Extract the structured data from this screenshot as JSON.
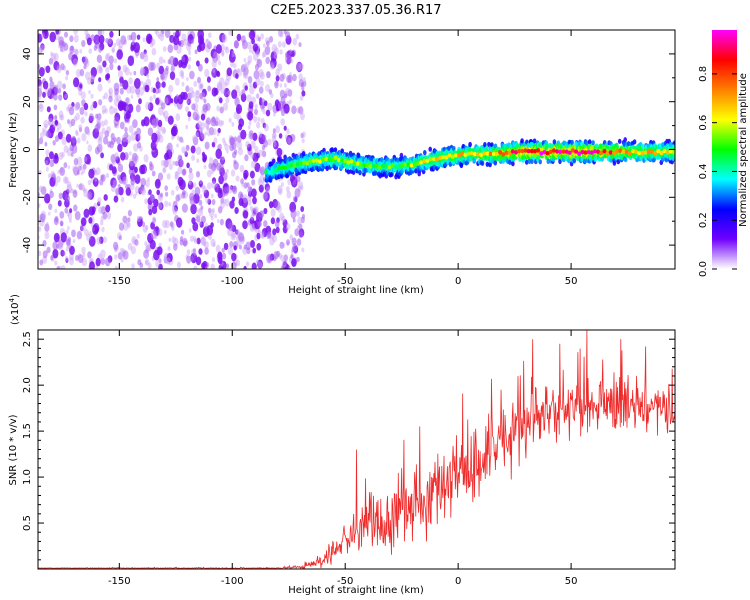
{
  "title": "C2E5.2023.337.05.36.R17",
  "chart_data": [
    {
      "type": "heatmap",
      "name": "spectrogram",
      "xlabel": "Height of straight line (km)",
      "ylabel": "Frequency (Hz)",
      "xlim": [
        -186,
        96
      ],
      "ylim": [
        -50,
        50
      ],
      "xticks": [
        -150,
        -100,
        -50,
        0,
        50
      ],
      "yticks": [
        -40,
        -20,
        0,
        20,
        40
      ],
      "noise_region_x": [
        -186,
        -72
      ],
      "signal_start_x": -85,
      "ridge": {
        "x": [
          -85,
          -75,
          -65,
          -55,
          -45,
          -35,
          -25,
          -15,
          -5,
          5,
          15,
          25,
          35,
          45,
          55,
          65,
          75,
          85,
          96
        ],
        "freq_hz": [
          -10,
          -7,
          -5,
          -4,
          -6,
          -7,
          -7,
          -5,
          -3,
          -2,
          -2,
          -1,
          -1,
          -1,
          -1,
          -1,
          -1,
          -1,
          -1
        ],
        "peak_amplitude": [
          0.45,
          0.55,
          0.6,
          0.62,
          0.6,
          0.55,
          0.55,
          0.65,
          0.7,
          0.72,
          0.75,
          0.95,
          0.98,
          0.98,
          0.98,
          0.9,
          0.75,
          0.72,
          0.7
        ]
      },
      "colorbar": {
        "label": "Normalized spectral amplitude",
        "range": [
          0,
          0.98
        ],
        "ticks": [
          "0.0",
          "0.2",
          "0.4",
          "0.6",
          "0.8"
        ],
        "tick_values": [
          0,
          0.2,
          0.4,
          0.6,
          0.8
        ],
        "stops": [
          "#ffffff",
          "#7000ff",
          "#0000ff",
          "#00ffff",
          "#00ff00",
          "#ffff00",
          "#ff8000",
          "#ff0000",
          "#ff00ff"
        ]
      }
    },
    {
      "type": "line",
      "name": "snr",
      "xlabel": "Height of straight line (km)",
      "ylabel": "SNR (10 * v/v)",
      "scale_label": "(x10",
      "scale_exp": "4",
      "scale_close": ")",
      "xlim": [
        -186,
        96
      ],
      "ylim": [
        0,
        2.6
      ],
      "xticks": [
        -150,
        -100,
        -50,
        0,
        50
      ],
      "yticks": [
        "0.5",
        "1.0",
        "1.5",
        "2.0",
        "2.5"
      ],
      "ytick_values": [
        0.5,
        1.0,
        1.5,
        2.0,
        2.5
      ],
      "color": "#ee2a2a",
      "envelope": {
        "x": [
          -186,
          -80,
          -70,
          -60,
          -55,
          -50,
          -45,
          -40,
          -30,
          -20,
          -10,
          0,
          10,
          20,
          30,
          40,
          50,
          60,
          70,
          80,
          96
        ],
        "mean": [
          0.01,
          0.01,
          0.02,
          0.1,
          0.2,
          0.3,
          0.38,
          0.45,
          0.55,
          0.7,
          0.85,
          1.05,
          1.2,
          1.4,
          1.6,
          1.7,
          1.75,
          1.78,
          1.78,
          1.75,
          1.72
        ],
        "spread": [
          0.003,
          0.005,
          0.02,
          0.08,
          0.14,
          0.2,
          0.25,
          0.28,
          0.33,
          0.38,
          0.42,
          0.45,
          0.45,
          0.42,
          0.38,
          0.34,
          0.32,
          0.3,
          0.28,
          0.27,
          0.25
        ]
      },
      "spikes": [
        {
          "x": -45,
          "y": 1.3
        },
        {
          "x": -17,
          "y": 1.55
        },
        {
          "x": 19,
          "y": 1.95
        },
        {
          "x": 33,
          "y": 2.5
        },
        {
          "x": 45,
          "y": 2.45
        },
        {
          "x": 57,
          "y": 2.6
        },
        {
          "x": 72,
          "y": 2.5
        },
        {
          "x": 83,
          "y": 2.42
        }
      ]
    }
  ]
}
